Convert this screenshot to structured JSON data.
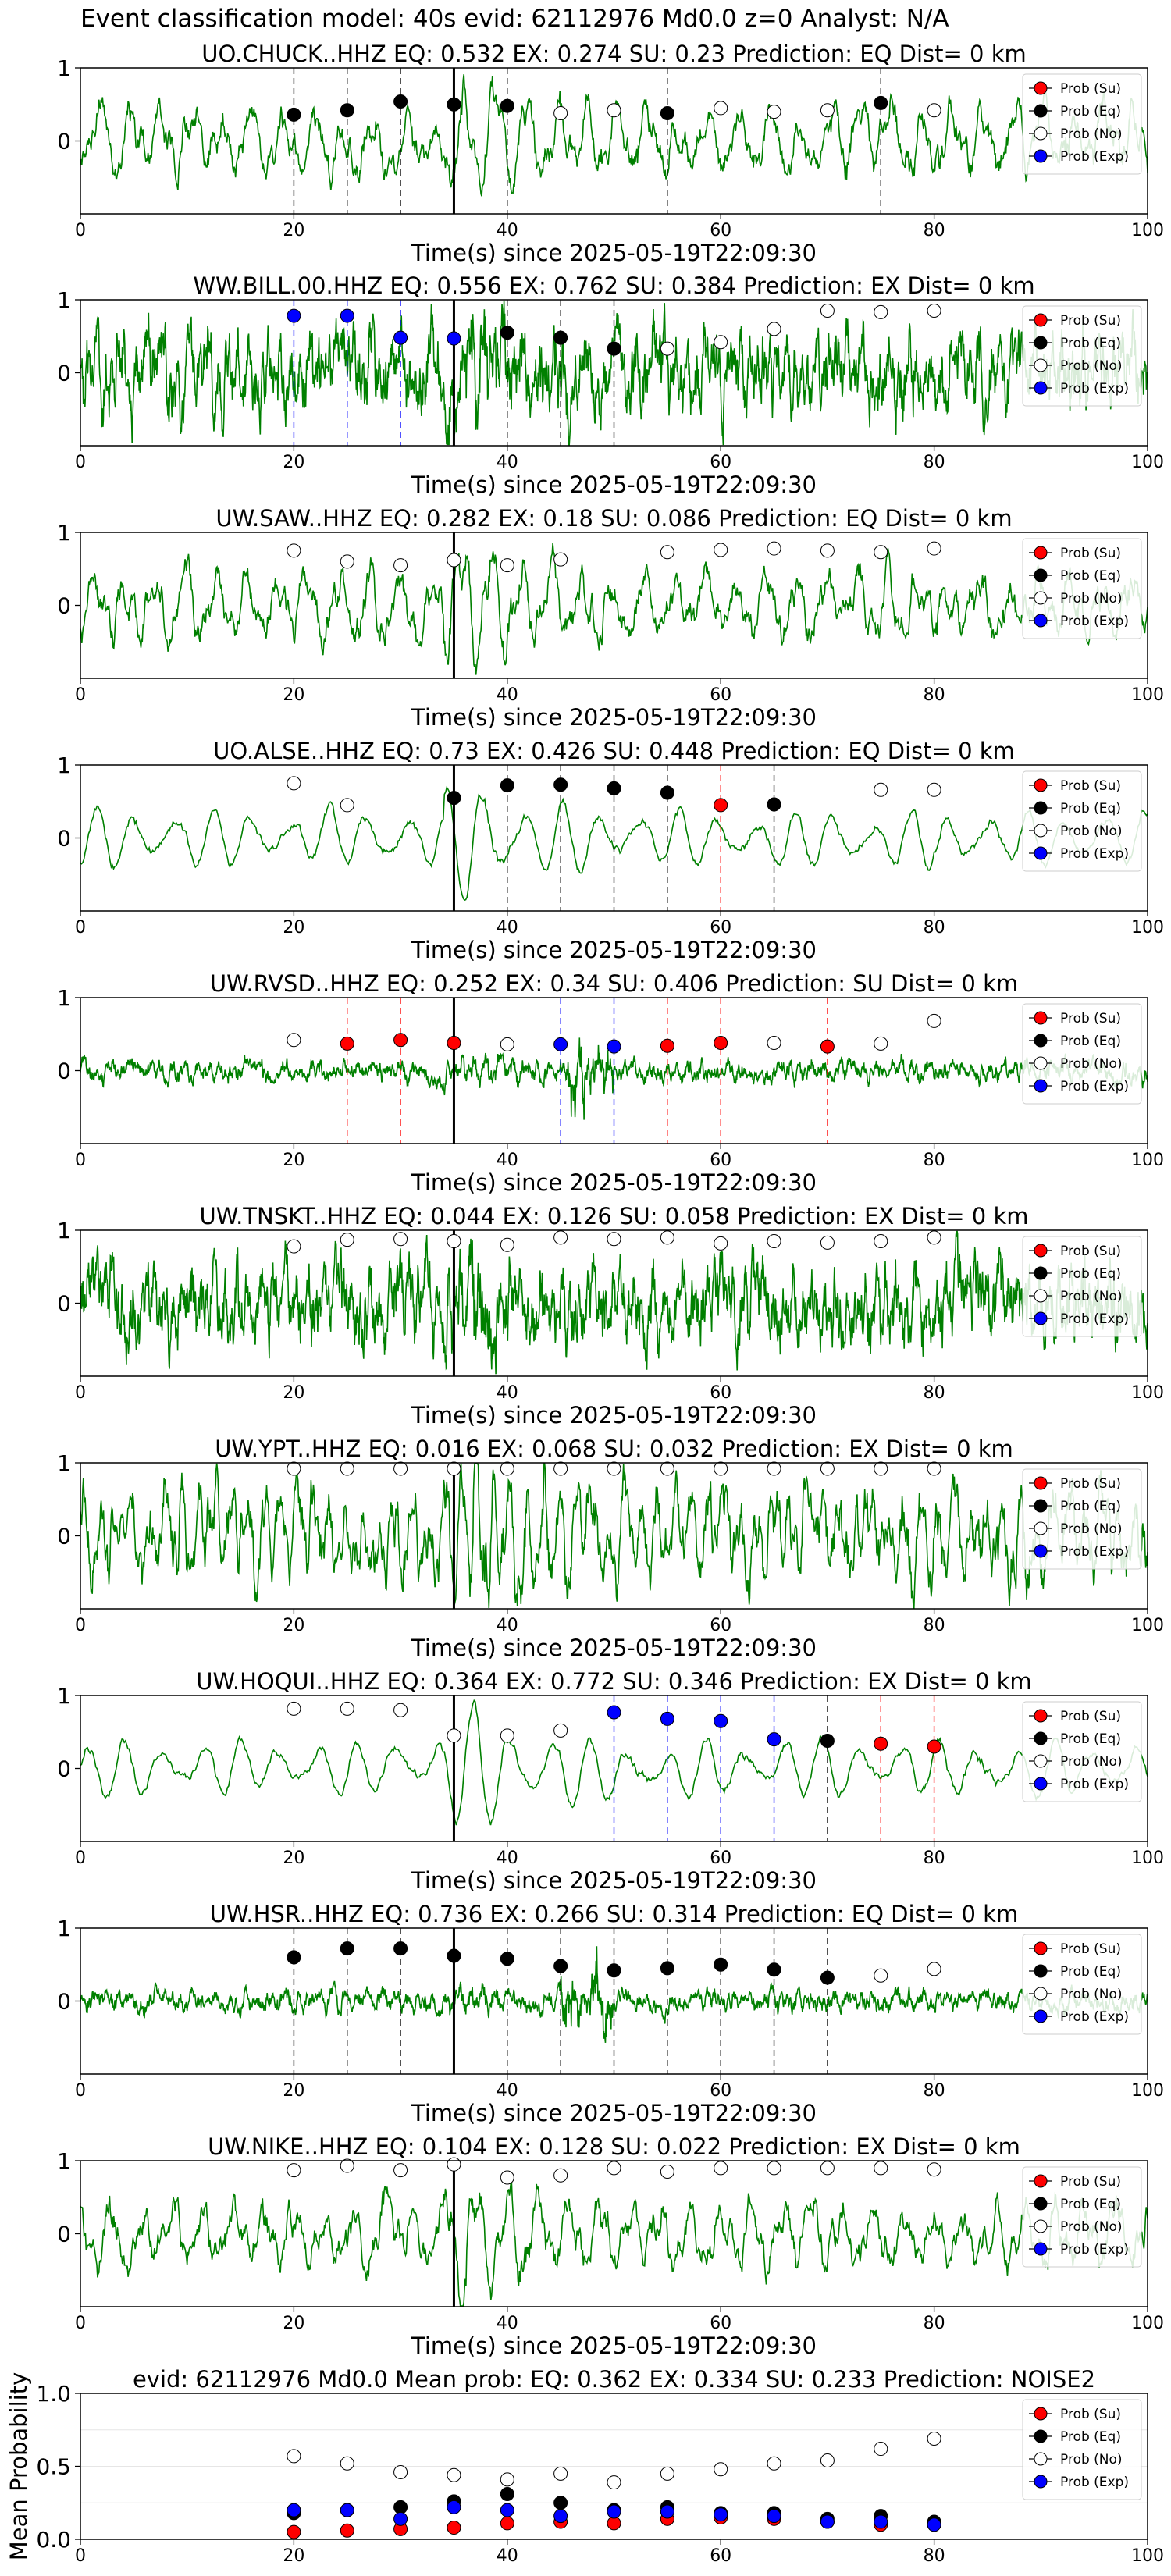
{
  "figure_title": "Event classification model: 40s evid: 62112976 Md0.0 z=0 Analyst: N/A",
  "colors": {
    "waveform": "#008000",
    "su": "#ff0000",
    "eq": "#000000",
    "no": "#ffffff",
    "exp": "#0000ff",
    "origin_line": "#000000"
  },
  "legend_entries": [
    {
      "key": "su",
      "label": "Prob (Su)"
    },
    {
      "key": "eq",
      "label": "Prob (Eq)"
    },
    {
      "key": "no",
      "label": "Prob (No)"
    },
    {
      "key": "exp",
      "label": "Prob (Exp)"
    }
  ],
  "legend_placement": "top-right",
  "chart_data": [
    {
      "type": "line",
      "station": "UO.CHUCK..HHZ",
      "title": "UO.CHUCK..HHZ   EQ: 0.532  EX: 0.274  SU: 0.23   Prediction: EQ    Dist= 0 km",
      "xlabel": "Time(s) since 2025-05-19T22:09:30",
      "ylabel": "",
      "xlim": [
        0,
        100
      ],
      "ylim": [
        -1,
        1
      ],
      "xticks": [
        0,
        20,
        40,
        60,
        80,
        100
      ],
      "yticks": [
        0,
        1
      ],
      "origin_time": 35,
      "waveform_style": "moderate",
      "windows": [
        {
          "t": 20,
          "p": 0.36,
          "cls": "eq"
        },
        {
          "t": 25,
          "p": 0.42,
          "cls": "eq"
        },
        {
          "t": 30,
          "p": 0.54,
          "cls": "eq"
        },
        {
          "t": 35,
          "p": 0.5,
          "cls": "eq"
        },
        {
          "t": 40,
          "p": 0.48,
          "cls": "eq"
        },
        {
          "t": 45,
          "p": 0.38,
          "cls": "no"
        },
        {
          "t": 50,
          "p": 0.42,
          "cls": "no"
        },
        {
          "t": 55,
          "p": 0.38,
          "cls": "eq"
        },
        {
          "t": 60,
          "p": 0.45,
          "cls": "no"
        },
        {
          "t": 65,
          "p": 0.4,
          "cls": "no"
        },
        {
          "t": 70,
          "p": 0.42,
          "cls": "no"
        },
        {
          "t": 75,
          "p": 0.52,
          "cls": "eq"
        },
        {
          "t": 80,
          "p": 0.42,
          "cls": "no"
        }
      ]
    },
    {
      "type": "line",
      "station": "WW.BILL.00.HHZ",
      "title": "WW.BILL.00.HHZ   EQ: 0.556  EX: 0.762  SU: 0.384   Prediction: EX    Dist= 0 km",
      "xlabel": "Time(s) since 2025-05-19T22:09:30",
      "ylabel": "",
      "xlim": [
        0,
        100
      ],
      "ylim": [
        -1,
        1
      ],
      "xticks": [
        0,
        20,
        40,
        60,
        80,
        100
      ],
      "yticks": [
        0,
        1
      ],
      "origin_time": 35,
      "waveform_style": "noisy",
      "windows": [
        {
          "t": 20,
          "p": 0.78,
          "cls": "exp"
        },
        {
          "t": 25,
          "p": 0.78,
          "cls": "exp"
        },
        {
          "t": 30,
          "p": 0.48,
          "cls": "exp"
        },
        {
          "t": 35,
          "p": 0.47,
          "cls": "exp"
        },
        {
          "t": 40,
          "p": 0.55,
          "cls": "eq"
        },
        {
          "t": 45,
          "p": 0.48,
          "cls": "eq"
        },
        {
          "t": 50,
          "p": 0.33,
          "cls": "eq"
        },
        {
          "t": 55,
          "p": 0.33,
          "cls": "no"
        },
        {
          "t": 60,
          "p": 0.42,
          "cls": "no"
        },
        {
          "t": 65,
          "p": 0.6,
          "cls": "no"
        },
        {
          "t": 70,
          "p": 0.85,
          "cls": "no"
        },
        {
          "t": 75,
          "p": 0.83,
          "cls": "no"
        },
        {
          "t": 80,
          "p": 0.85,
          "cls": "no"
        }
      ]
    },
    {
      "type": "line",
      "station": "UW.SAW..HHZ",
      "title": "UW.SAW..HHZ   EQ: 0.282  EX: 0.18  SU: 0.086   Prediction: EQ    Dist= 0 km",
      "xlabel": "Time(s) since 2025-05-19T22:09:30",
      "ylabel": "",
      "xlim": [
        0,
        100
      ],
      "ylim": [
        -1,
        1
      ],
      "xticks": [
        0,
        20,
        40,
        60,
        80,
        100
      ],
      "yticks": [
        0,
        1
      ],
      "origin_time": 35,
      "waveform_style": "moderate",
      "windows": [
        {
          "t": 20,
          "p": 0.75,
          "cls": "no"
        },
        {
          "t": 25,
          "p": 0.6,
          "cls": "no"
        },
        {
          "t": 30,
          "p": 0.55,
          "cls": "no"
        },
        {
          "t": 35,
          "p": 0.62,
          "cls": "no"
        },
        {
          "t": 40,
          "p": 0.55,
          "cls": "no"
        },
        {
          "t": 45,
          "p": 0.63,
          "cls": "no"
        },
        {
          "t": 55,
          "p": 0.73,
          "cls": "no"
        },
        {
          "t": 60,
          "p": 0.76,
          "cls": "no"
        },
        {
          "t": 65,
          "p": 0.78,
          "cls": "no"
        },
        {
          "t": 70,
          "p": 0.75,
          "cls": "no"
        },
        {
          "t": 75,
          "p": 0.73,
          "cls": "no"
        },
        {
          "t": 80,
          "p": 0.78,
          "cls": "no"
        }
      ]
    },
    {
      "type": "line",
      "station": "UO.ALSE..HHZ",
      "title": "UO.ALSE..HHZ   EQ: 0.73  EX: 0.426  SU: 0.448   Prediction: EQ    Dist= 0 km",
      "xlabel": "Time(s) since 2025-05-19T22:09:30",
      "ylabel": "",
      "xlim": [
        0,
        100
      ],
      "ylim": [
        -1,
        1
      ],
      "xticks": [
        0,
        20,
        40,
        60,
        80,
        100
      ],
      "yticks": [
        0,
        1
      ],
      "origin_time": 35,
      "waveform_style": "smooth",
      "windows": [
        {
          "t": 20,
          "p": 0.75,
          "cls": "no"
        },
        {
          "t": 25,
          "p": 0.45,
          "cls": "no"
        },
        {
          "t": 35,
          "p": 0.55,
          "cls": "eq"
        },
        {
          "t": 40,
          "p": 0.72,
          "cls": "eq"
        },
        {
          "t": 45,
          "p": 0.73,
          "cls": "eq"
        },
        {
          "t": 50,
          "p": 0.68,
          "cls": "eq"
        },
        {
          "t": 55,
          "p": 0.62,
          "cls": "eq"
        },
        {
          "t": 60,
          "p": 0.45,
          "cls": "su"
        },
        {
          "t": 65,
          "p": 0.46,
          "cls": "eq"
        },
        {
          "t": 75,
          "p": 0.66,
          "cls": "no"
        },
        {
          "t": 80,
          "p": 0.66,
          "cls": "no"
        }
      ]
    },
    {
      "type": "line",
      "station": "UW.RVSD..HHZ",
      "title": "UW.RVSD..HHZ   EQ: 0.252  EX: 0.34  SU: 0.406   Prediction: SU    Dist= 0 km",
      "xlabel": "Time(s) since 2025-05-19T22:09:30",
      "ylabel": "",
      "xlim": [
        0,
        100
      ],
      "ylim": [
        -1,
        1
      ],
      "xticks": [
        0,
        20,
        40,
        60,
        80,
        100
      ],
      "yticks": [
        0,
        1
      ],
      "origin_time": 35,
      "waveform_style": "quiet",
      "windows": [
        {
          "t": 20,
          "p": 0.42,
          "cls": "no"
        },
        {
          "t": 25,
          "p": 0.37,
          "cls": "su"
        },
        {
          "t": 30,
          "p": 0.42,
          "cls": "su"
        },
        {
          "t": 35,
          "p": 0.38,
          "cls": "su"
        },
        {
          "t": 40,
          "p": 0.36,
          "cls": "no"
        },
        {
          "t": 45,
          "p": 0.36,
          "cls": "exp"
        },
        {
          "t": 50,
          "p": 0.33,
          "cls": "exp"
        },
        {
          "t": 55,
          "p": 0.34,
          "cls": "su"
        },
        {
          "t": 60,
          "p": 0.38,
          "cls": "su"
        },
        {
          "t": 65,
          "p": 0.38,
          "cls": "no"
        },
        {
          "t": 70,
          "p": 0.33,
          "cls": "su"
        },
        {
          "t": 75,
          "p": 0.37,
          "cls": "no"
        },
        {
          "t": 80,
          "p": 0.68,
          "cls": "no"
        }
      ]
    },
    {
      "type": "line",
      "station": "UW.TNSKT..HHZ",
      "title": "UW.TNSKT..HHZ   EQ: 0.044  EX: 0.126  SU: 0.058   Prediction: EX    Dist= 0 km",
      "xlabel": "Time(s) since 2025-05-19T22:09:30",
      "ylabel": "",
      "xlim": [
        0,
        100
      ],
      "ylim": [
        -1,
        1
      ],
      "xticks": [
        0,
        20,
        40,
        60,
        80,
        100
      ],
      "yticks": [
        0,
        1
      ],
      "origin_time": 35,
      "waveform_style": "noisy",
      "windows": [
        {
          "t": 20,
          "p": 0.78,
          "cls": "no"
        },
        {
          "t": 25,
          "p": 0.87,
          "cls": "no"
        },
        {
          "t": 30,
          "p": 0.88,
          "cls": "no"
        },
        {
          "t": 35,
          "p": 0.85,
          "cls": "no"
        },
        {
          "t": 40,
          "p": 0.8,
          "cls": "no"
        },
        {
          "t": 45,
          "p": 0.9,
          "cls": "no"
        },
        {
          "t": 50,
          "p": 0.88,
          "cls": "no"
        },
        {
          "t": 55,
          "p": 0.9,
          "cls": "no"
        },
        {
          "t": 60,
          "p": 0.82,
          "cls": "no"
        },
        {
          "t": 65,
          "p": 0.85,
          "cls": "no"
        },
        {
          "t": 70,
          "p": 0.83,
          "cls": "no"
        },
        {
          "t": 75,
          "p": 0.85,
          "cls": "no"
        },
        {
          "t": 80,
          "p": 0.9,
          "cls": "no"
        }
      ]
    },
    {
      "type": "line",
      "station": "UW.YPT..HHZ",
      "title": "UW.YPT..HHZ   EQ: 0.016  EX: 0.068  SU: 0.032   Prediction: EX    Dist= 0 km",
      "xlabel": "Time(s) since 2025-05-19T22:09:30",
      "ylabel": "",
      "xlim": [
        0,
        100
      ],
      "ylim": [
        -1,
        1
      ],
      "xticks": [
        0,
        20,
        40,
        60,
        80,
        100
      ],
      "yticks": [
        0,
        1
      ],
      "origin_time": 35,
      "waveform_style": "rough",
      "windows": [
        {
          "t": 20,
          "p": 0.92,
          "cls": "no"
        },
        {
          "t": 25,
          "p": 0.92,
          "cls": "no"
        },
        {
          "t": 30,
          "p": 0.92,
          "cls": "no"
        },
        {
          "t": 35,
          "p": 0.92,
          "cls": "no"
        },
        {
          "t": 40,
          "p": 0.92,
          "cls": "no"
        },
        {
          "t": 45,
          "p": 0.92,
          "cls": "no"
        },
        {
          "t": 50,
          "p": 0.92,
          "cls": "no"
        },
        {
          "t": 55,
          "p": 0.92,
          "cls": "no"
        },
        {
          "t": 60,
          "p": 0.92,
          "cls": "no"
        },
        {
          "t": 65,
          "p": 0.92,
          "cls": "no"
        },
        {
          "t": 70,
          "p": 0.92,
          "cls": "no"
        },
        {
          "t": 75,
          "p": 0.92,
          "cls": "no"
        },
        {
          "t": 80,
          "p": 0.92,
          "cls": "no"
        }
      ]
    },
    {
      "type": "line",
      "station": "UW.HOQUI..HHZ",
      "title": "UW.HOQUI..HHZ   EQ: 0.364  EX: 0.772  SU: 0.346   Prediction: EX    Dist= 0 km",
      "xlabel": "Time(s) since 2025-05-19T22:09:30",
      "ylabel": "",
      "xlim": [
        0,
        100
      ],
      "ylim": [
        -1,
        1
      ],
      "xticks": [
        0,
        20,
        40,
        60,
        80,
        100
      ],
      "yticks": [
        0,
        1
      ],
      "origin_time": 35,
      "waveform_style": "smooth",
      "windows": [
        {
          "t": 20,
          "p": 0.82,
          "cls": "no"
        },
        {
          "t": 25,
          "p": 0.82,
          "cls": "no"
        },
        {
          "t": 30,
          "p": 0.8,
          "cls": "no"
        },
        {
          "t": 35,
          "p": 0.45,
          "cls": "no"
        },
        {
          "t": 40,
          "p": 0.45,
          "cls": "no"
        },
        {
          "t": 45,
          "p": 0.52,
          "cls": "no"
        },
        {
          "t": 50,
          "p": 0.77,
          "cls": "exp"
        },
        {
          "t": 55,
          "p": 0.68,
          "cls": "exp"
        },
        {
          "t": 60,
          "p": 0.65,
          "cls": "exp"
        },
        {
          "t": 65,
          "p": 0.4,
          "cls": "exp"
        },
        {
          "t": 70,
          "p": 0.38,
          "cls": "eq"
        },
        {
          "t": 75,
          "p": 0.34,
          "cls": "su"
        },
        {
          "t": 80,
          "p": 0.3,
          "cls": "su"
        }
      ]
    },
    {
      "type": "line",
      "station": "UW.HSR..HHZ",
      "title": "UW.HSR..HHZ   EQ: 0.736  EX: 0.266  SU: 0.314   Prediction: EQ    Dist= 0 km",
      "xlabel": "Time(s) since 2025-05-19T22:09:30",
      "ylabel": "",
      "xlim": [
        0,
        100
      ],
      "ylim": [
        -1,
        1
      ],
      "xticks": [
        0,
        20,
        40,
        60,
        80,
        100
      ],
      "yticks": [
        0,
        1
      ],
      "origin_time": 35,
      "waveform_style": "quiet",
      "windows": [
        {
          "t": 20,
          "p": 0.6,
          "cls": "eq"
        },
        {
          "t": 25,
          "p": 0.72,
          "cls": "eq"
        },
        {
          "t": 30,
          "p": 0.72,
          "cls": "eq"
        },
        {
          "t": 35,
          "p": 0.62,
          "cls": "eq"
        },
        {
          "t": 40,
          "p": 0.58,
          "cls": "eq"
        },
        {
          "t": 45,
          "p": 0.48,
          "cls": "eq"
        },
        {
          "t": 50,
          "p": 0.42,
          "cls": "eq"
        },
        {
          "t": 55,
          "p": 0.45,
          "cls": "eq"
        },
        {
          "t": 60,
          "p": 0.5,
          "cls": "eq"
        },
        {
          "t": 65,
          "p": 0.43,
          "cls": "eq"
        },
        {
          "t": 70,
          "p": 0.32,
          "cls": "eq"
        },
        {
          "t": 75,
          "p": 0.35,
          "cls": "no"
        },
        {
          "t": 80,
          "p": 0.44,
          "cls": "no"
        }
      ]
    },
    {
      "type": "line",
      "station": "UW.NIKE..HHZ",
      "title": "UW.NIKE..HHZ   EQ: 0.104  EX: 0.128  SU: 0.022   Prediction: EX    Dist= 0 km",
      "xlabel": "Time(s) since 2025-05-19T22:09:30",
      "ylabel": "",
      "xlim": [
        0,
        100
      ],
      "ylim": [
        -1,
        1
      ],
      "xticks": [
        0,
        20,
        40,
        60,
        80,
        100
      ],
      "yticks": [
        0,
        1
      ],
      "origin_time": 35,
      "waveform_style": "moderate",
      "windows": [
        {
          "t": 20,
          "p": 0.87,
          "cls": "no"
        },
        {
          "t": 25,
          "p": 0.93,
          "cls": "no"
        },
        {
          "t": 30,
          "p": 0.87,
          "cls": "no"
        },
        {
          "t": 35,
          "p": 0.95,
          "cls": "no"
        },
        {
          "t": 40,
          "p": 0.77,
          "cls": "no"
        },
        {
          "t": 45,
          "p": 0.8,
          "cls": "no"
        },
        {
          "t": 50,
          "p": 0.9,
          "cls": "no"
        },
        {
          "t": 55,
          "p": 0.85,
          "cls": "no"
        },
        {
          "t": 60,
          "p": 0.9,
          "cls": "no"
        },
        {
          "t": 65,
          "p": 0.9,
          "cls": "no"
        },
        {
          "t": 70,
          "p": 0.9,
          "cls": "no"
        },
        {
          "t": 75,
          "p": 0.9,
          "cls": "no"
        },
        {
          "t": 80,
          "p": 0.88,
          "cls": "no"
        }
      ]
    },
    {
      "type": "scatter",
      "station": "",
      "title": "evid: 62112976  Md0.0   Mean prob:   EQ: 0.362  EX: 0.334  SU: 0.233   Prediction: NOISE2",
      "xlabel": "",
      "ylabel": "Mean Probability",
      "xlim": [
        0,
        100
      ],
      "ylim": [
        0,
        1
      ],
      "xticks": [
        0,
        20,
        40,
        60,
        80,
        100
      ],
      "yticks": [
        0.0,
        0.5,
        1.0
      ],
      "ytick_labels": [
        "0.0",
        "0.5",
        "1.0"
      ],
      "x": [
        20,
        25,
        30,
        35,
        40,
        45,
        50,
        55,
        60,
        65,
        70,
        75,
        80
      ],
      "series": [
        {
          "name": "Prob (Su)",
          "key": "su",
          "values": [
            0.05,
            0.06,
            0.07,
            0.08,
            0.11,
            0.12,
            0.11,
            0.14,
            0.15,
            0.14,
            0.12,
            0.1,
            0.1
          ]
        },
        {
          "name": "Prob (Eq)",
          "key": "eq",
          "values": [
            0.18,
            0.2,
            0.22,
            0.26,
            0.31,
            0.25,
            0.2,
            0.22,
            0.18,
            0.18,
            0.14,
            0.16,
            0.12
          ]
        },
        {
          "name": "Prob (No)",
          "key": "no",
          "values": [
            0.57,
            0.52,
            0.46,
            0.44,
            0.41,
            0.45,
            0.39,
            0.45,
            0.48,
            0.52,
            0.54,
            0.62,
            0.69
          ]
        },
        {
          "name": "Prob (Exp)",
          "key": "exp",
          "values": [
            0.2,
            0.2,
            0.14,
            0.22,
            0.2,
            0.16,
            0.19,
            0.19,
            0.17,
            0.16,
            0.12,
            0.12,
            0.1
          ]
        }
      ]
    }
  ]
}
